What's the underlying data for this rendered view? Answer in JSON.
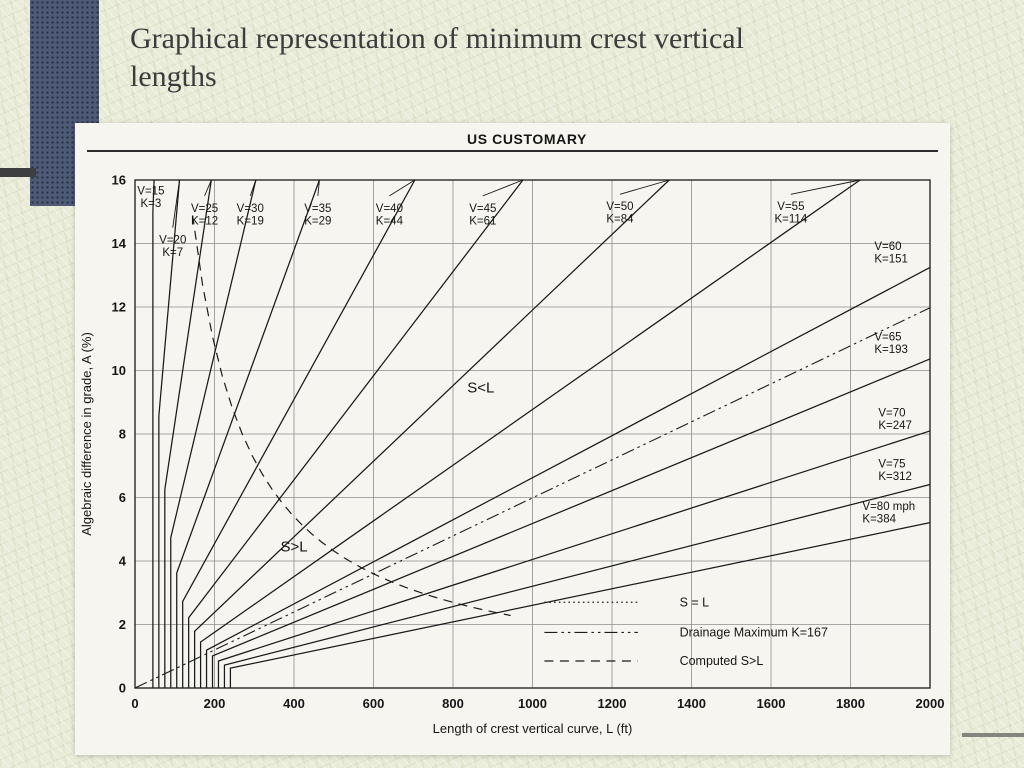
{
  "slide": {
    "title": "Graphical representation of minimum crest vertical lengths"
  },
  "colors": {
    "accent_block": "#4f5a76",
    "background": "#e9ecd8",
    "ink": "#1c1c1c"
  },
  "chart_data": {
    "type": "line",
    "title": "US CUSTOMARY",
    "xlabel": "Length of crest vertical curve, L (ft)",
    "ylabel": "Algebraic difference in grade, A (%)",
    "xlim": [
      0,
      2000
    ],
    "ylim": [
      0,
      16
    ],
    "xticks": [
      0,
      200,
      400,
      600,
      800,
      1000,
      1200,
      1400,
      1600,
      1800,
      2000
    ],
    "yticks": [
      0,
      2,
      4,
      6,
      8,
      10,
      12,
      14,
      16
    ],
    "grid": true,
    "min_length_multiplier": 3,
    "speed_lines": [
      {
        "v": 15,
        "k": 3,
        "label_l": 40,
        "label_a": 15.55,
        "side": "top"
      },
      {
        "v": 20,
        "k": 7,
        "label_l": 95,
        "label_a": 14.0,
        "side": "top"
      },
      {
        "v": 25,
        "k": 12,
        "label_l": 175,
        "label_a": 15.0,
        "side": "top"
      },
      {
        "v": 30,
        "k": 19,
        "label_l": 290,
        "label_a": 15.0,
        "side": "top"
      },
      {
        "v": 35,
        "k": 29,
        "label_l": 460,
        "label_a": 15.0,
        "side": "top"
      },
      {
        "v": 40,
        "k": 44,
        "label_l": 640,
        "label_a": 15.0,
        "side": "top"
      },
      {
        "v": 45,
        "k": 61,
        "label_l": 875,
        "label_a": 15.0,
        "side": "top"
      },
      {
        "v": 50,
        "k": 84,
        "label_l": 1220,
        "label_a": 15.05,
        "side": "top"
      },
      {
        "v": 55,
        "k": 114,
        "label_l": 1650,
        "label_a": 15.05,
        "side": "top"
      },
      {
        "v": 60,
        "k": 151,
        "label_l": 1860,
        "label_a": 13.8,
        "side": "right"
      },
      {
        "v": 65,
        "k": 193,
        "label_l": 1860,
        "label_a": 10.95,
        "side": "right"
      },
      {
        "v": 70,
        "k": 247,
        "label_l": 1870,
        "label_a": 8.55,
        "side": "right"
      },
      {
        "v": 75,
        "k": 312,
        "label_l": 1870,
        "label_a": 6.95,
        "side": "right"
      },
      {
        "v": 80,
        "k": 384,
        "label_v": "V=80 mph",
        "label_l": 1830,
        "label_a": 5.6,
        "side": "right"
      }
    ],
    "reference_lines": {
      "drainage": {
        "label": "Drainage Maximum K=167",
        "k": 167,
        "style": "dashdot"
      },
      "s_equals_l": {
        "label": "S = L",
        "style": "dotted"
      },
      "computed_sgl": {
        "label": "Computed S>L",
        "style": "dashed",
        "constant": 2158,
        "l_start": 145,
        "l_end": 950
      }
    },
    "region_labels": [
      {
        "text": "S<L",
        "l": 870,
        "a": 9.3
      },
      {
        "text": "S>L",
        "l": 400,
        "a": 4.3
      }
    ],
    "legend": {
      "rows": [
        {
          "label": "S = L",
          "style": "dotted"
        },
        {
          "label": "Drainage Maximum K=167",
          "style": "dashdot"
        },
        {
          "label": "Computed S>L",
          "style": "dashed"
        }
      ],
      "line_l": [
        1030,
        1265
      ],
      "text_l": 1370,
      "a_rows": [
        2.7,
        1.75,
        0.85
      ]
    }
  }
}
